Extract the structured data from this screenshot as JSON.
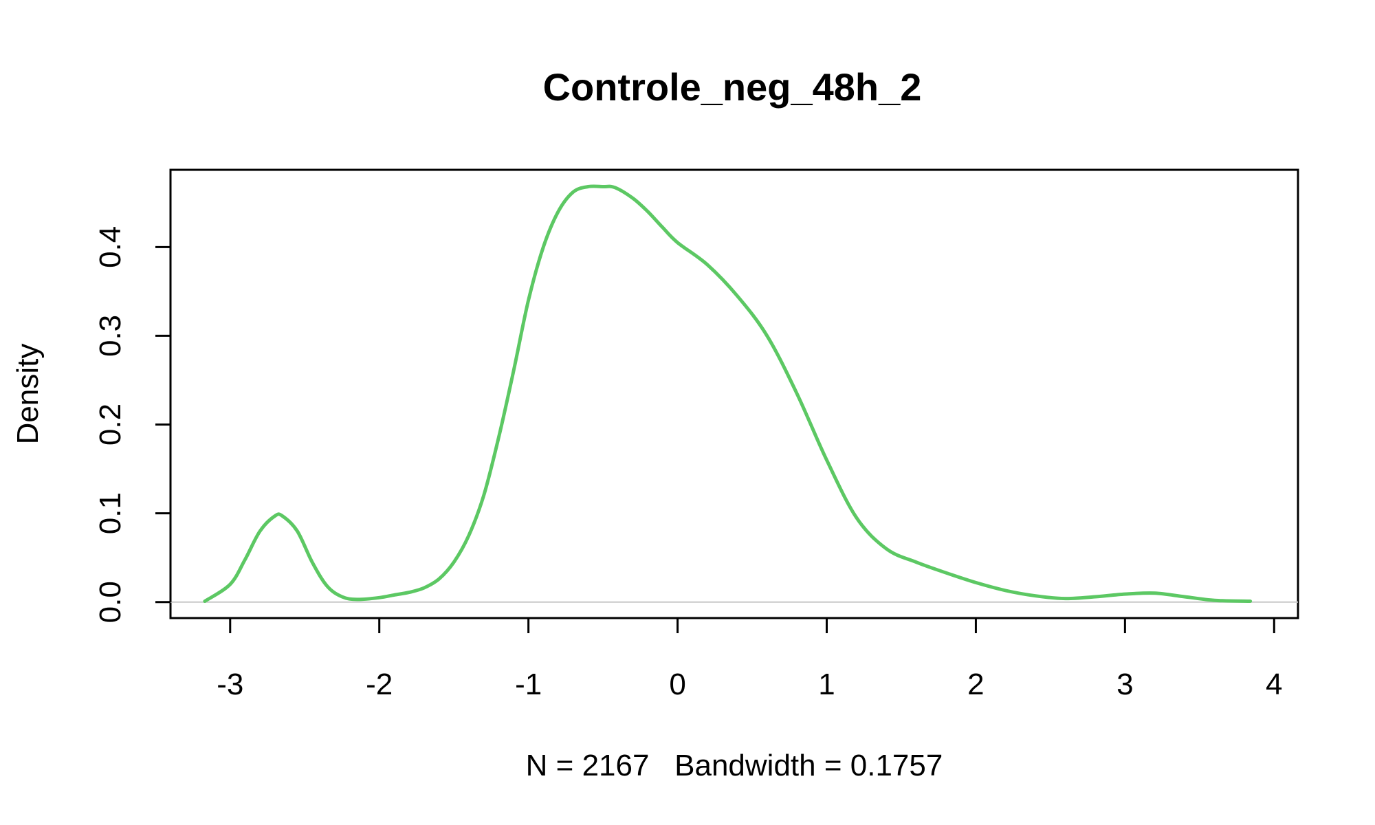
{
  "chart_data": {
    "type": "line",
    "title": "Controle_neg_48h_2",
    "xlabel": "N = 2167   Bandwidth = 0.1757",
    "ylabel": "Density",
    "xlim": [
      -3.4,
      4.16
    ],
    "ylim": [
      -0.018,
      0.487
    ],
    "x_ticks": [
      -3,
      -2,
      -1,
      0,
      1,
      2,
      3,
      4
    ],
    "x_tick_labels": [
      "-3",
      "-2",
      "-1",
      "0",
      "1",
      "2",
      "3",
      "4"
    ],
    "y_ticks": [
      0.0,
      0.1,
      0.2,
      0.3,
      0.4
    ],
    "y_tick_labels": [
      "0.0",
      "0.1",
      "0.2",
      "0.3",
      "0.4"
    ],
    "grid": false,
    "reference_line": 0,
    "series": [
      {
        "color": "#5cc863",
        "x": [
          -3.17,
          -3.0,
          -2.9,
          -2.8,
          -2.7,
          -2.65,
          -2.55,
          -2.45,
          -2.35,
          -2.25,
          -2.15,
          -2.0,
          -1.9,
          -1.8,
          -1.7,
          -1.6,
          -1.5,
          -1.4,
          -1.3,
          -1.2,
          -1.1,
          -1.0,
          -0.9,
          -0.8,
          -0.7,
          -0.6,
          -0.5,
          -0.42,
          -0.3,
          -0.2,
          -0.1,
          0.0,
          0.2,
          0.4,
          0.6,
          0.8,
          1.0,
          1.2,
          1.4,
          1.6,
          1.8,
          2.0,
          2.2,
          2.4,
          2.6,
          2.8,
          3.0,
          3.2,
          3.4,
          3.6,
          3.84
        ],
        "y": [
          0.001,
          0.02,
          0.048,
          0.08,
          0.097,
          0.097,
          0.08,
          0.045,
          0.018,
          0.006,
          0.003,
          0.005,
          0.008,
          0.011,
          0.016,
          0.026,
          0.045,
          0.075,
          0.12,
          0.185,
          0.26,
          0.34,
          0.4,
          0.44,
          0.462,
          0.468,
          0.468,
          0.467,
          0.455,
          0.44,
          0.422,
          0.405,
          0.38,
          0.345,
          0.3,
          0.235,
          0.16,
          0.095,
          0.06,
          0.045,
          0.033,
          0.022,
          0.013,
          0.007,
          0.004,
          0.006,
          0.009,
          0.01,
          0.006,
          0.002,
          0.001
        ]
      }
    ]
  }
}
